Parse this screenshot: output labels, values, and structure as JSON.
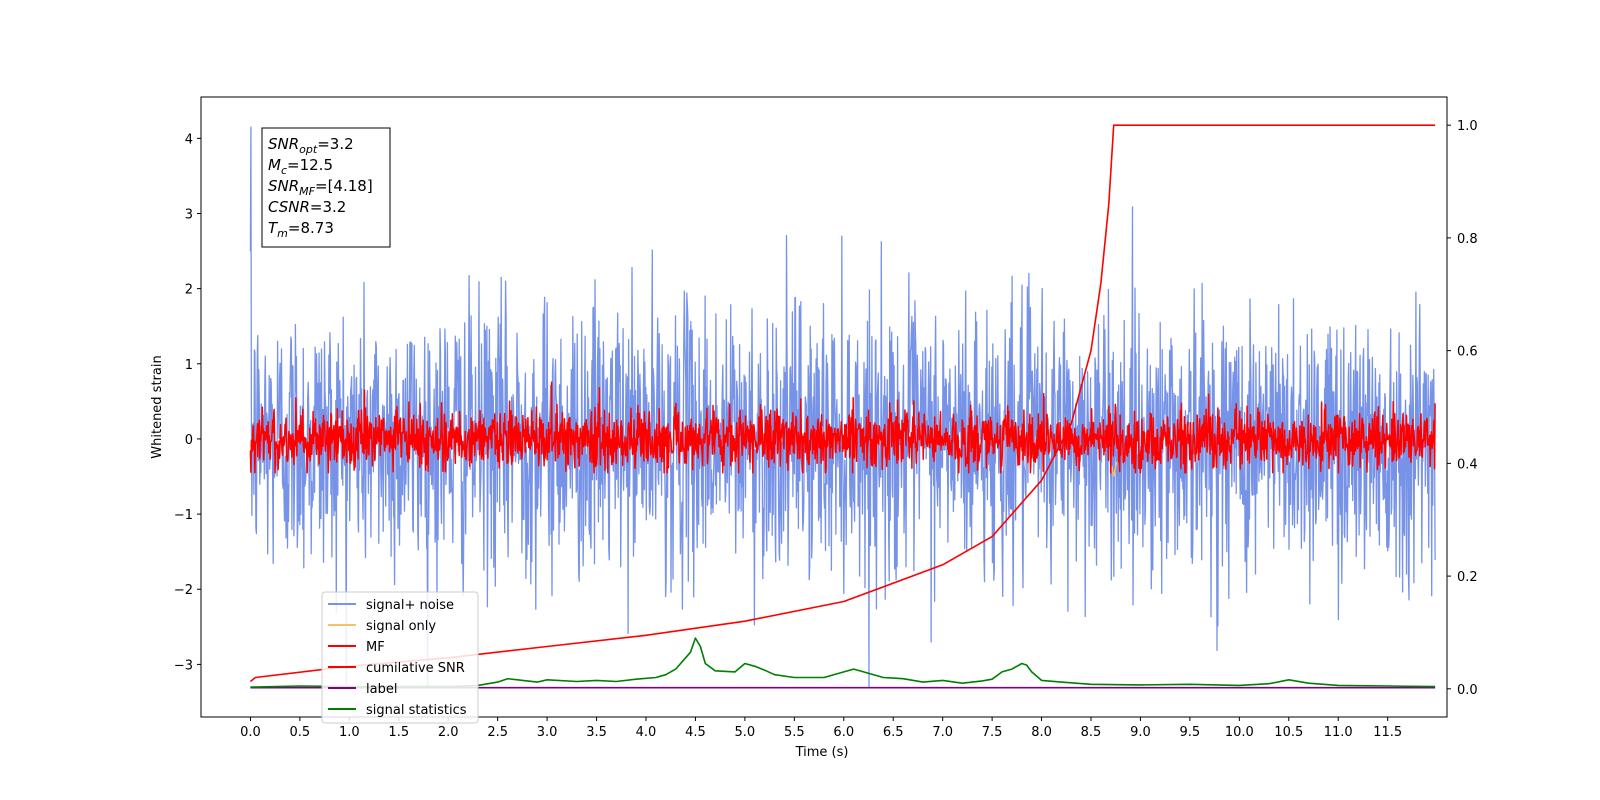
{
  "chart_data": {
    "type": "line",
    "xlabel": "Time (s)",
    "ylabel": "Whitened strain",
    "xlim": [
      -0.5,
      12.1
    ],
    "ylim": [
      -3.7,
      4.55
    ],
    "y2lim": [
      -0.05,
      1.05
    ],
    "grid": false,
    "legend_placement": "lower-left",
    "x_ticks": [
      "0.0",
      "0.5",
      "1.0",
      "1.5",
      "2.0",
      "2.5",
      "3.0",
      "3.5",
      "4.0",
      "4.5",
      "5.0",
      "5.5",
      "6.0",
      "6.5",
      "7.0",
      "7.5",
      "8.0",
      "8.5",
      "9.0",
      "9.5",
      "10.0",
      "10.5",
      "11.0",
      "11.5"
    ],
    "y_ticks": [
      "4",
      "3",
      "2",
      "1",
      "0",
      "−1",
      "−2",
      "−3"
    ],
    "y_tick_values": [
      4,
      3,
      2,
      1,
      0,
      -1,
      -2,
      -3
    ],
    "y2_ticks": [
      "1.0",
      "0.8",
      "0.6",
      "0.4",
      "0.2",
      "0.0"
    ],
    "y2_tick_values": [
      1.0,
      0.8,
      0.6,
      0.4,
      0.2,
      0.0
    ],
    "annotation": [
      {
        "base": "SNR",
        "sub": "opt",
        "value": "=3.2"
      },
      {
        "base": "M",
        "sub": "c",
        "value": "=12.5"
      },
      {
        "base": "SNR",
        "sub": "MF",
        "value": "=[4.18]"
      },
      {
        "base": "CSNR",
        "sub": "",
        "value": "=3.2"
      },
      {
        "base": "T",
        "sub": "m",
        "value": "=8.73"
      }
    ],
    "series": [
      {
        "name": "signal+ noise",
        "color": "#7793e8",
        "axis": "left",
        "x_range": [
          0,
          11.98
        ],
        "std": 0.9,
        "min": -3.3,
        "max": 4.15,
        "note_values": "dense noise"
      },
      {
        "name": "signal only",
        "color": "#f5c26b",
        "axis": "left",
        "x": [
          8.7,
          8.73,
          8.76
        ],
        "y": [
          -0.35,
          -0.5,
          -0.3
        ]
      },
      {
        "name": "MF",
        "color": "#ff0000",
        "axis": "left",
        "x_range": [
          0,
          11.98
        ],
        "std": 0.2,
        "min": -0.45,
        "max": 1.0
      },
      {
        "name": "cumilative SNR",
        "color": "#ff0000",
        "axis": "right",
        "x": [
          0.0,
          0.05,
          1.0,
          2.0,
          3.0,
          4.0,
          5.0,
          6.0,
          7.0,
          7.5,
          8.0,
          8.3,
          8.5,
          8.6,
          8.68,
          8.73,
          11.98
        ],
        "y": [
          0.013,
          0.02,
          0.04,
          0.055,
          0.075,
          0.095,
          0.12,
          0.155,
          0.22,
          0.27,
          0.37,
          0.47,
          0.6,
          0.72,
          0.86,
          1.0,
          1.0
        ]
      },
      {
        "name": "label",
        "color": "#800080",
        "axis": "right",
        "x": [
          0.0,
          11.98
        ],
        "y": [
          0.002,
          0.002
        ]
      },
      {
        "name": "signal statistics",
        "color": "#008000",
        "axis": "right",
        "x": [
          0.0,
          0.5,
          1.0,
          1.5,
          2.0,
          2.3,
          2.5,
          2.6,
          2.7,
          2.9,
          3.0,
          3.3,
          3.5,
          3.7,
          3.9,
          4.1,
          4.2,
          4.3,
          4.4,
          4.45,
          4.5,
          4.55,
          4.6,
          4.7,
          4.9,
          5.0,
          5.1,
          5.2,
          5.3,
          5.5,
          5.8,
          6.0,
          6.1,
          6.2,
          6.4,
          6.6,
          6.8,
          7.0,
          7.2,
          7.4,
          7.5,
          7.6,
          7.7,
          7.8,
          7.85,
          7.9,
          8.0,
          8.2,
          8.5,
          9.0,
          9.5,
          10.0,
          10.3,
          10.5,
          10.7,
          11.0,
          11.5,
          11.98
        ],
        "y": [
          0.003,
          0.005,
          0.004,
          0.004,
          0.004,
          0.006,
          0.012,
          0.018,
          0.016,
          0.012,
          0.016,
          0.013,
          0.015,
          0.013,
          0.017,
          0.02,
          0.025,
          0.035,
          0.055,
          0.065,
          0.09,
          0.075,
          0.045,
          0.032,
          0.03,
          0.045,
          0.04,
          0.033,
          0.025,
          0.02,
          0.02,
          0.03,
          0.035,
          0.03,
          0.02,
          0.018,
          0.012,
          0.015,
          0.01,
          0.014,
          0.017,
          0.03,
          0.035,
          0.045,
          0.042,
          0.03,
          0.015,
          0.012,
          0.008,
          0.007,
          0.008,
          0.006,
          0.009,
          0.016,
          0.01,
          0.006,
          0.005,
          0.004
        ]
      }
    ]
  }
}
